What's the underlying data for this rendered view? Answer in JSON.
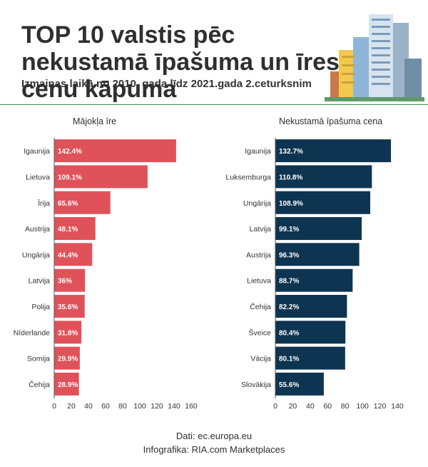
{
  "header": {
    "title": "TOP 10 valstis pēc nekustamā īpašuma un īres cenu kāpuma",
    "subtitle": "Izmaiņas laikā no 2010. gada līdz 2021.gada 2.ceturksnim"
  },
  "footer": {
    "source": "Dati: ec.europa.eu",
    "credit": "Infografika: RIA.com Marketplaces"
  },
  "colors": {
    "rent_bar": "#e0525a",
    "price_bar": "#0d3450",
    "divider": "#3f8c5a"
  },
  "chart_data": [
    {
      "type": "bar",
      "orientation": "horizontal",
      "title": "Mājokļa īre",
      "categories": [
        "Igaunija",
        "Lietuva",
        "Īrija",
        "Austrija",
        "Ungārija",
        "Latvija",
        "Polija",
        "Nīderlande",
        "Somija",
        "Čehija"
      ],
      "values": [
        142.4,
        109.1,
        65.6,
        48.1,
        44.4,
        36,
        35.6,
        31.8,
        29.9,
        28.9
      ],
      "value_labels": [
        "142.4%",
        "109.1%",
        "65.6%",
        "48.1%",
        "44.4%",
        "36%",
        "35.6%",
        "31.8%",
        "29.9%",
        "28.9%"
      ],
      "xlim": [
        0,
        160
      ],
      "xticks": [
        0,
        20,
        40,
        60,
        80,
        100,
        120,
        140,
        160
      ],
      "grid": false
    },
    {
      "type": "bar",
      "orientation": "horizontal",
      "title": "Nekustamā īpašuma cena",
      "categories": [
        "Igaunija",
        "Luksemburga",
        "Ungārija",
        "Latvija",
        "Austrija",
        "Lietuva",
        "Čehija",
        "Šveice",
        "Vācija",
        "Slovākija"
      ],
      "values": [
        132.7,
        110.8,
        108.9,
        99.1,
        96.3,
        88.7,
        82.2,
        80.4,
        80.1,
        55.6
      ],
      "value_labels": [
        "132.7%",
        "110.8%",
        "108.9%",
        "99.1%",
        "96.3%",
        "88.7%",
        "82.2%",
        "80.4%",
        "80.1%",
        "55.6%"
      ],
      "xlim": [
        0,
        140
      ],
      "xticks": [
        0,
        20,
        40,
        60,
        80,
        100,
        120,
        140
      ],
      "grid": false
    }
  ]
}
